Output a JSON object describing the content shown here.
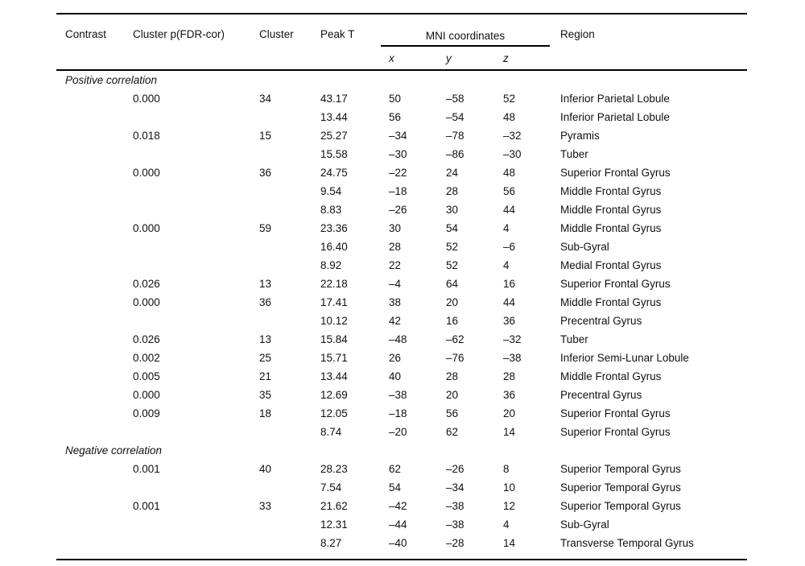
{
  "table": {
    "columns": [
      "Contrast",
      "Cluster p(FDR-cor)",
      "Cluster",
      "Peak T",
      "x",
      "y",
      "z",
      "Region"
    ],
    "mni_header": "MNI coordinates",
    "sections": [
      {
        "label": "Positive correlation",
        "rows": [
          [
            "0.000",
            "34",
            "43.17",
            "50",
            "–58",
            "52",
            "Inferior Parietal Lobule"
          ],
          [
            "",
            "",
            "13.44",
            "56",
            "–54",
            "48",
            "Inferior Parietal Lobule"
          ],
          [
            "0.018",
            "15",
            "25.27",
            "–34",
            "–78",
            "–32",
            "Pyramis"
          ],
          [
            "",
            "",
            "15.58",
            "–30",
            "–86",
            "–30",
            "Tuber"
          ],
          [
            "0.000",
            "36",
            "24.75",
            "–22",
            "24",
            "48",
            "Superior Frontal Gyrus"
          ],
          [
            "",
            "",
            "9.54",
            "–18",
            "28",
            "56",
            "Middle Frontal Gyrus"
          ],
          [
            "",
            "",
            "8.83",
            "–26",
            "30",
            "44",
            "Middle Frontal Gyrus"
          ],
          [
            "0.000",
            "59",
            "23.36",
            "30",
            "54",
            "4",
            "Middle Frontal Gyrus"
          ],
          [
            "",
            "",
            "16.40",
            "28",
            "52",
            "–6",
            "Sub-Gyral"
          ],
          [
            "",
            "",
            "8.92",
            "22",
            "52",
            "4",
            "Medial Frontal Gyrus"
          ],
          [
            "0.026",
            "13",
            "22.18",
            "–4",
            "64",
            "16",
            "Superior Frontal Gyrus"
          ],
          [
            "0.000",
            "36",
            "17.41",
            "38",
            "20",
            "44",
            "Middle Frontal Gyrus"
          ],
          [
            "",
            "",
            "10.12",
            "42",
            "16",
            "36",
            "Precentral Gyrus"
          ],
          [
            "0.026",
            "13",
            "15.84",
            "–48",
            "–62",
            "–32",
            "Tuber"
          ],
          [
            "0.002",
            "25",
            "15.71",
            "26",
            "–76",
            "–38",
            "Inferior Semi-Lunar Lobule"
          ],
          [
            "0.005",
            "21",
            "13.44",
            "40",
            "28",
            "28",
            "Middle Frontal Gyrus"
          ],
          [
            "0.000",
            "35",
            "12.69",
            "–38",
            "20",
            "36",
            "Precentral Gyrus"
          ],
          [
            "0.009",
            "18",
            "12.05",
            "–18",
            "56",
            "20",
            "Superior Frontal Gyrus"
          ],
          [
            "",
            "",
            "8.74",
            "–20",
            "62",
            "14",
            "Superior Frontal Gyrus"
          ]
        ]
      },
      {
        "label": "Negative correlation",
        "rows": [
          [
            "0.001",
            "40",
            "28.23",
            "62",
            "–26",
            "8",
            "Superior Temporal Gyrus"
          ],
          [
            "",
            "",
            "7.54",
            "54",
            "–34",
            "10",
            "Superior Temporal Gyrus"
          ],
          [
            "0.001",
            "33",
            "21.62",
            "–42",
            "–38",
            "12",
            "Superior Temporal Gyrus"
          ],
          [
            "",
            "",
            "12.31",
            "–44",
            "–38",
            "4",
            "Sub-Gyral"
          ],
          [
            "",
            "",
            "8.27",
            "–40",
            "–28",
            "14",
            "Transverse Temporal Gyrus"
          ]
        ]
      }
    ]
  }
}
